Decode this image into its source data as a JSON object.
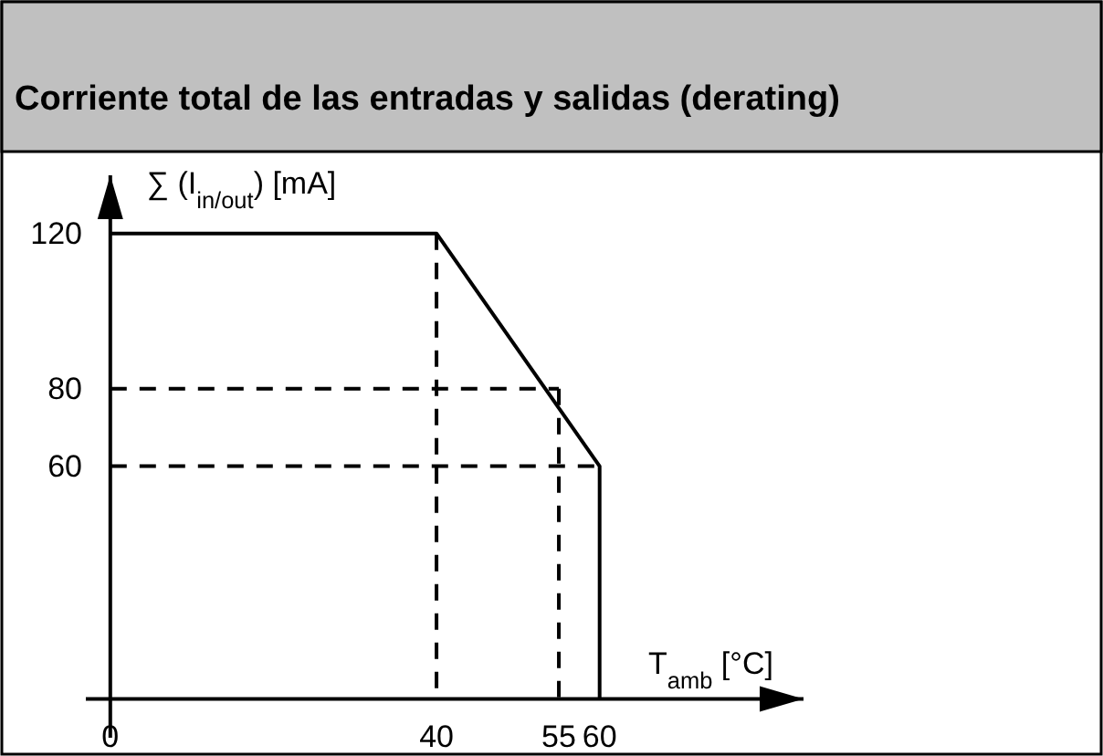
{
  "chart_data": {
    "type": "line",
    "title": "Corriente total de las entradas y salidas (derating)",
    "xlabel": "T$_{amb}$ [°C]",
    "ylabel": "∑ (I$_{in/out}$) [mA]",
    "xlim": [
      -3,
      85
    ],
    "ylim": [
      -10,
      135
    ],
    "xticks": [
      0,
      40,
      55,
      60
    ],
    "yticks": [
      60,
      80,
      120
    ],
    "grid": false,
    "marker": "none",
    "series": [
      {
        "color": "#000000",
        "line_style": "solid",
        "x": [
          0,
          40,
          60,
          60
        ],
        "values": [
          120,
          120,
          60,
          0
        ]
      },
      {
        "color": "#000000",
        "line_style": "dashed",
        "x": [
          40,
          40
        ],
        "values": [
          120,
          0
        ]
      },
      {
        "color": "#000000",
        "line_style": "dashed",
        "x": [
          0,
          55
        ],
        "values": [
          80,
          80
        ]
      },
      {
        "color": "#000000",
        "line_style": "dashed",
        "x": [
          55,
          55
        ],
        "values": [
          80,
          0
        ]
      },
      {
        "color": "#000000",
        "line_style": "dashed",
        "x": [
          0,
          60
        ],
        "values": [
          60,
          60
        ]
      }
    ]
  }
}
